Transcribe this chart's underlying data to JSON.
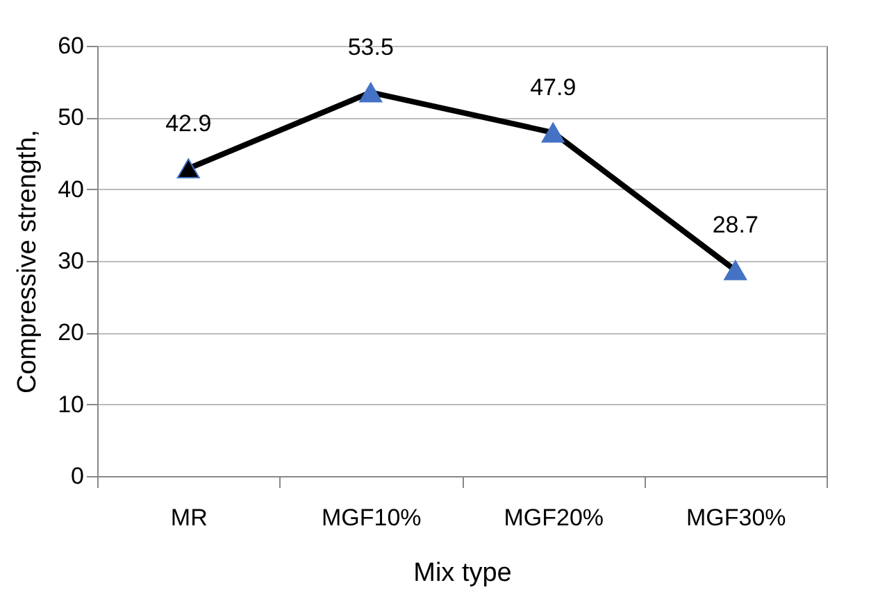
{
  "chart_data": {
    "type": "line",
    "xlabel": "Mix type",
    "ylabel": "Compressive strength,",
    "categories": [
      "MR",
      "MGF10%",
      "MGF20%",
      "MGF30%"
    ],
    "series": [
      {
        "color": "#000000",
        "colors": [
          "#000000",
          "#4472c4",
          "#4472c4",
          "#4472c4"
        ],
        "values": [
          42.9,
          53.5,
          47.9,
          28.7
        ]
      }
    ],
    "ylim": [
      0,
      60
    ],
    "yticks": [
      0,
      10,
      20,
      30,
      40,
      50,
      60
    ],
    "grid": "y",
    "marker": "triangle",
    "line_style": "solid",
    "data_labels": true
  }
}
